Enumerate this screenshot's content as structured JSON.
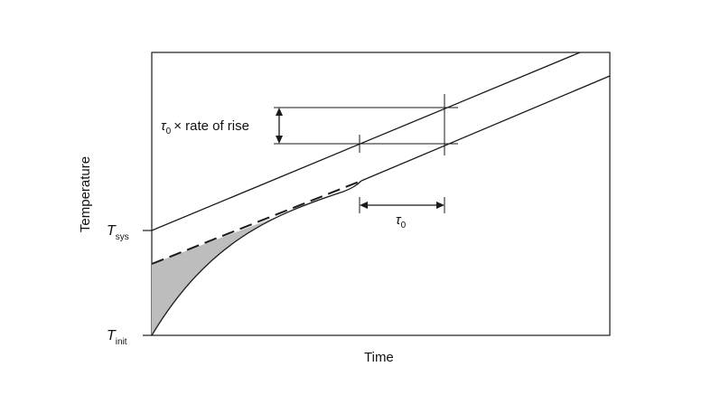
{
  "figure": {
    "y_axis_label": "Temperature",
    "x_axis_label": "Time",
    "tick_labels": {
      "sys": {
        "main": "T",
        "sub": "sys"
      },
      "init": {
        "main": "T",
        "sub": "init"
      }
    },
    "annotations": {
      "rate": {
        "symbol": "τ",
        "sub": "0",
        "text": "× rate of rise"
      },
      "lag": {
        "symbol": "τ",
        "sub": "0"
      }
    }
  },
  "colors": {
    "stroke": "#1a1a1a",
    "shade": "#bdbdbd"
  }
}
